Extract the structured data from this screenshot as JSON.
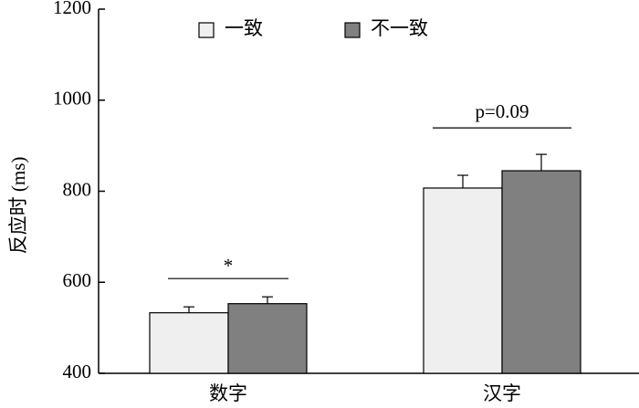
{
  "chart_data": {
    "type": "bar",
    "y_label": "反应时 (ms)",
    "categories": [
      "数字",
      "汉字"
    ],
    "series": [
      {
        "name": "一致",
        "color": "#efefef",
        "values": [
          533,
          807
        ],
        "errors": [
          13,
          28
        ]
      },
      {
        "name": "不一致",
        "color": "#808080",
        "values": [
          553,
          845
        ],
        "errors": [
          15,
          36
        ]
      }
    ],
    "annotations": [
      "*",
      "p=0.09"
    ],
    "ylim": [
      400,
      1200
    ],
    "yticks": [
      400,
      600,
      800,
      1000,
      1200
    ],
    "grid": false
  }
}
